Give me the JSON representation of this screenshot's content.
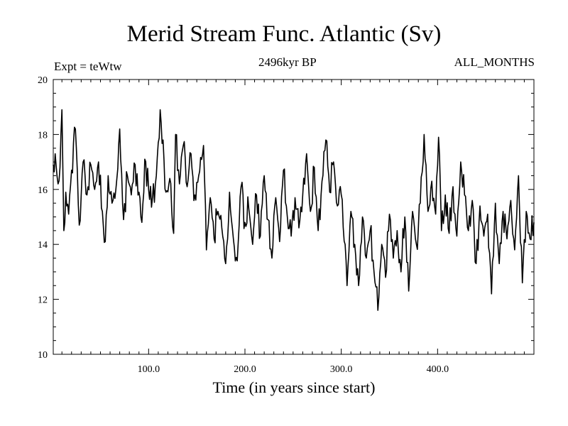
{
  "chart_data": {
    "type": "line",
    "title": "Merid Stream Func. Atlantic (Sv)",
    "subtitle": "2496kyr BP",
    "left_label": "Expt = teWtw",
    "right_label": "ALL_MONTHS",
    "xlabel": "Time (in years since start)",
    "ylabel": "",
    "xlim": [
      1,
      500
    ],
    "ylim": [
      10,
      20
    ],
    "xticks_major": [
      100,
      200,
      300,
      400
    ],
    "xtick_labels": [
      "100.0",
      "200.0",
      "300.0",
      "400.0"
    ],
    "yticks_major": [
      10,
      12,
      14,
      16,
      18,
      20
    ],
    "ytick_labels": [
      "10",
      "12",
      "14",
      "16",
      "18",
      "20"
    ],
    "grid": false,
    "anchors": [
      [
        1,
        16.9
      ],
      [
        3,
        17.3
      ],
      [
        6,
        16.2
      ],
      [
        8,
        16.8
      ],
      [
        10,
        18.9
      ],
      [
        12,
        14.5
      ],
      [
        14,
        15.9
      ],
      [
        17,
        15.1
      ],
      [
        20,
        16.7
      ],
      [
        24,
        18.2
      ],
      [
        28,
        14.7
      ],
      [
        32,
        17.0
      ],
      [
        36,
        15.8
      ],
      [
        40,
        16.9
      ],
      [
        44,
        16.0
      ],
      [
        48,
        17.0
      ],
      [
        52,
        15.2
      ],
      [
        55,
        14.1
      ],
      [
        58,
        16.5
      ],
      [
        62,
        15.5
      ],
      [
        66,
        16.0
      ],
      [
        70,
        18.2
      ],
      [
        74,
        14.9
      ],
      [
        78,
        16.5
      ],
      [
        82,
        15.8
      ],
      [
        86,
        16.9
      ],
      [
        90,
        15.9
      ],
      [
        93,
        14.8
      ],
      [
        96,
        17.1
      ],
      [
        100,
        16.0
      ],
      [
        104,
        15.7
      ],
      [
        108,
        16.5
      ],
      [
        112,
        18.9
      ],
      [
        115,
        17.8
      ],
      [
        118,
        15.9
      ],
      [
        122,
        16.4
      ],
      [
        126,
        14.4
      ],
      [
        128,
        18.0
      ],
      [
        132,
        16.2
      ],
      [
        136,
        17.6
      ],
      [
        140,
        16.1
      ],
      [
        144,
        17.3
      ],
      [
        148,
        15.8
      ],
      [
        152,
        16.5
      ],
      [
        157,
        17.6
      ],
      [
        160,
        13.8
      ],
      [
        164,
        15.7
      ],
      [
        168,
        14.2
      ],
      [
        172,
        15.2
      ],
      [
        176,
        14.6
      ],
      [
        180,
        13.3
      ],
      [
        184,
        15.9
      ],
      [
        188,
        14.2
      ],
      [
        192,
        13.4
      ],
      [
        196,
        16.1
      ],
      [
        200,
        14.8
      ],
      [
        204,
        15.3
      ],
      [
        208,
        14.0
      ],
      [
        212,
        15.8
      ],
      [
        216,
        14.3
      ],
      [
        220,
        16.5
      ],
      [
        224,
        14.9
      ],
      [
        228,
        13.5
      ],
      [
        232,
        15.7
      ],
      [
        236,
        14.1
      ],
      [
        240,
        16.7
      ],
      [
        244,
        15.0
      ],
      [
        248,
        14.3
      ],
      [
        252,
        15.7
      ],
      [
        256,
        14.6
      ],
      [
        260,
        15.8
      ],
      [
        264,
        17.3
      ],
      [
        268,
        15.2
      ],
      [
        272,
        16.8
      ],
      [
        276,
        14.5
      ],
      [
        280,
        16.3
      ],
      [
        284,
        17.8
      ],
      [
        288,
        15.9
      ],
      [
        292,
        17.0
      ],
      [
        296,
        15.4
      ],
      [
        300,
        15.8
      ],
      [
        304,
        14.0
      ],
      [
        306,
        12.5
      ],
      [
        310,
        15.2
      ],
      [
        314,
        14.0
      ],
      [
        318,
        12.5
      ],
      [
        322,
        15.0
      ],
      [
        326,
        13.5
      ],
      [
        330,
        14.5
      ],
      [
        334,
        13.0
      ],
      [
        338,
        11.6
      ],
      [
        342,
        14.0
      ],
      [
        346,
        12.8
      ],
      [
        350,
        15.1
      ],
      [
        354,
        13.5
      ],
      [
        358,
        14.5
      ],
      [
        362,
        13.0
      ],
      [
        366,
        15.0
      ],
      [
        370,
        12.3
      ],
      [
        374,
        15.2
      ],
      [
        378,
        14.0
      ],
      [
        382,
        15.5
      ],
      [
        386,
        18.0
      ],
      [
        390,
        15.2
      ],
      [
        394,
        16.3
      ],
      [
        398,
        15.1
      ],
      [
        401,
        17.9
      ],
      [
        404,
        14.5
      ],
      [
        408,
        15.8
      ],
      [
        412,
        14.4
      ],
      [
        416,
        16.1
      ],
      [
        420,
        14.3
      ],
      [
        424,
        17.0
      ],
      [
        428,
        15.8
      ],
      [
        432,
        14.5
      ],
      [
        436,
        15.6
      ],
      [
        440,
        13.3
      ],
      [
        444,
        15.4
      ],
      [
        448,
        14.3
      ],
      [
        452,
        15.1
      ],
      [
        456,
        12.2
      ],
      [
        460,
        15.5
      ],
      [
        464,
        13.3
      ],
      [
        468,
        15.2
      ],
      [
        472,
        14.2
      ],
      [
        476,
        15.6
      ],
      [
        480,
        13.8
      ],
      [
        484,
        16.5
      ],
      [
        488,
        12.6
      ],
      [
        492,
        15.2
      ],
      [
        496,
        14.2
      ],
      [
        500,
        14.8
      ]
    ],
    "series": [
      {
        "name": "Merid Stream Func. Atlantic",
        "color": "#000000"
      }
    ]
  }
}
